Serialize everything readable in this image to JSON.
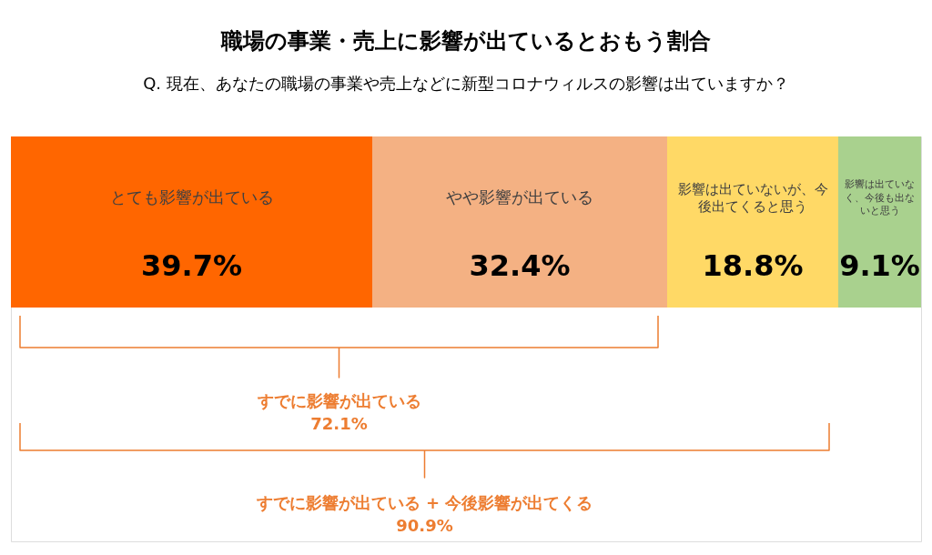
{
  "chart_data": {
    "type": "bar",
    "orientation": "horizontal",
    "stacked": true,
    "title": "職場の事業・売上に影響が出ているとおもう割合",
    "subtitle": "Q. 現在、あなたの職場の事業や売上などに新型コロナウィルスの影響は出ていますか？",
    "categories": [
      null
    ],
    "series": [
      {
        "name": "とても影響が出ている",
        "color": "#ff6600",
        "values": [
          39.7
        ],
        "value_labels": [
          "39.7%"
        ]
      },
      {
        "name": "やや影響が出ている",
        "color": "#f4b183",
        "values": [
          32.4
        ],
        "value_labels": [
          "32.4%"
        ]
      },
      {
        "name": "影響は出ていないが、今後出てくると思う",
        "color": "#ffd966",
        "values": [
          18.8
        ],
        "value_labels": [
          "18.8%"
        ]
      },
      {
        "name": "影響は出ていなく、今後も出ないと思う",
        "color": "#a9d18e",
        "values": [
          9.1
        ],
        "value_labels": [
          "9.1%"
        ]
      }
    ],
    "xlim": [
      0,
      100
    ],
    "tick_labels": false,
    "annotations": [
      "すでに影響が出ている\n72.1%",
      "すでに影響が出ている + 今後影響が出てくる\n90.9%"
    ]
  }
}
